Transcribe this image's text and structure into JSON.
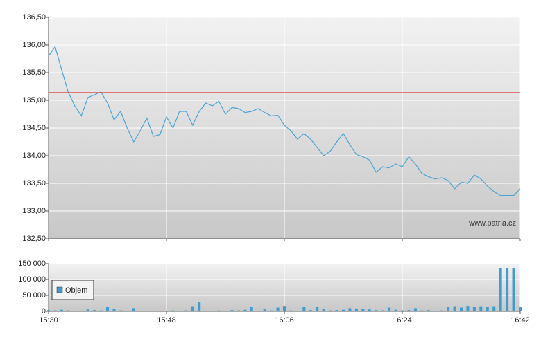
{
  "chart_data": [
    {
      "type": "line",
      "color": "#4aa3d4",
      "grid": true,
      "watermark": "www.patria.cz",
      "reference_line": 135.14,
      "reference_color": "#d9534f",
      "xlim": [
        "15:30",
        "16:42"
      ],
      "ylim": [
        132.5,
        136.5
      ],
      "yticks": [
        {
          "value": 132.5,
          "label": "132,50"
        },
        {
          "value": 133,
          "label": "133,00"
        },
        {
          "value": 133.5,
          "label": "133,50"
        },
        {
          "value": 134,
          "label": "134,00"
        },
        {
          "value": 134.5,
          "label": "134,50"
        },
        {
          "value": 135,
          "label": "135,00"
        },
        {
          "value": 135.5,
          "label": "135,50"
        },
        {
          "value": 136,
          "label": "136,00"
        },
        {
          "value": 136.5,
          "label": "136,50"
        }
      ],
      "x": [
        "15:30",
        "15:31",
        "15:32",
        "15:33",
        "15:34",
        "15:35",
        "15:36",
        "15:37",
        "15:38",
        "15:39",
        "15:40",
        "15:41",
        "15:42",
        "15:43",
        "15:44",
        "15:45",
        "15:46",
        "15:47",
        "15:48",
        "15:49",
        "15:50",
        "15:51",
        "15:52",
        "15:53",
        "15:54",
        "15:55",
        "15:56",
        "15:57",
        "15:58",
        "15:59",
        "16:00",
        "16:01",
        "16:02",
        "16:03",
        "16:04",
        "16:05",
        "16:06",
        "16:07",
        "16:08",
        "16:09",
        "16:10",
        "16:11",
        "16:12",
        "16:13",
        "16:14",
        "16:15",
        "16:16",
        "16:17",
        "16:18",
        "16:19",
        "16:20",
        "16:21",
        "16:22",
        "16:23",
        "16:24",
        "16:25",
        "16:26",
        "16:27",
        "16:28",
        "16:29",
        "16:30",
        "16:31",
        "16:32",
        "16:33",
        "16:34",
        "16:35",
        "16:36",
        "16:37",
        "16:38",
        "16:39",
        "16:40",
        "16:41",
        "16:42"
      ],
      "values": [
        135.8,
        135.97,
        135.55,
        135.15,
        134.9,
        134.72,
        135.05,
        135.1,
        135.15,
        134.95,
        134.65,
        134.8,
        134.5,
        134.25,
        134.45,
        134.68,
        134.35,
        134.38,
        134.7,
        134.5,
        134.8,
        134.8,
        134.55,
        134.8,
        134.95,
        134.9,
        134.98,
        134.75,
        134.87,
        134.85,
        134.78,
        134.8,
        134.85,
        134.78,
        134.72,
        134.73,
        134.55,
        134.45,
        134.3,
        134.4,
        134.3,
        134.15,
        134.0,
        134.08,
        134.25,
        134.4,
        134.2,
        134.02,
        133.98,
        133.92,
        133.7,
        133.8,
        133.78,
        133.85,
        133.8,
        133.98,
        133.85,
        133.68,
        133.62,
        133.58,
        133.6,
        133.55,
        133.4,
        133.52,
        133.5,
        133.65,
        133.58,
        133.45,
        133.35,
        133.28,
        133.28,
        133.28,
        133.4
      ]
    },
    {
      "type": "bar",
      "color": "#3e9ccf",
      "grid": true,
      "legend": "bottom-left",
      "series_name": "Objem",
      "xlim": [
        "15:30",
        "16:42"
      ],
      "xticks": [
        "15:30",
        "15:48",
        "16:06",
        "16:24",
        "16:42"
      ],
      "ylim": [
        0,
        150000
      ],
      "yticks": [
        0,
        {
          "value": 50000,
          "label": "50 000"
        },
        {
          "value": 100000,
          "label": "100 000"
        },
        {
          "value": 150000,
          "label": "150 000"
        }
      ],
      "x": [
        "15:30",
        "15:31",
        "15:32",
        "15:33",
        "15:34",
        "15:35",
        "15:36",
        "15:37",
        "15:38",
        "15:39",
        "15:40",
        "15:41",
        "15:42",
        "15:43",
        "15:44",
        "15:45",
        "15:46",
        "15:47",
        "15:48",
        "15:49",
        "15:50",
        "15:51",
        "15:52",
        "15:53",
        "15:54",
        "15:55",
        "15:56",
        "15:57",
        "15:58",
        "15:59",
        "16:00",
        "16:01",
        "16:02",
        "16:03",
        "16:04",
        "16:05",
        "16:06",
        "16:07",
        "16:08",
        "16:09",
        "16:10",
        "16:11",
        "16:12",
        "16:13",
        "16:14",
        "16:15",
        "16:16",
        "16:17",
        "16:18",
        "16:19",
        "16:20",
        "16:21",
        "16:22",
        "16:23",
        "16:24",
        "16:25",
        "16:26",
        "16:27",
        "16:28",
        "16:29",
        "16:30",
        "16:31",
        "16:32",
        "16:33",
        "16:34",
        "16:35",
        "16:36",
        "16:37",
        "16:38",
        "16:39",
        "16:40",
        "16:41",
        "16:42"
      ],
      "values": [
        4000,
        3000,
        5000,
        3000,
        2000,
        1000,
        6000,
        4000,
        3000,
        13000,
        8000,
        3000,
        2000,
        10000,
        2000,
        1000,
        2000,
        1000,
        2000,
        3000,
        2000,
        3000,
        14000,
        30000,
        2000,
        1000,
        3000,
        2000,
        4000,
        3000,
        5000,
        13000,
        2000,
        8000,
        3000,
        12000,
        15000,
        3000,
        2000,
        13000,
        4000,
        13000,
        8000,
        3000,
        4000,
        5000,
        10000,
        9000,
        8000,
        6000,
        4000,
        3000,
        12000,
        5000,
        3000,
        4000,
        10000,
        3000,
        4000,
        2000,
        3000,
        13000,
        14000,
        12000,
        15000,
        13000,
        14000,
        13000,
        14000,
        135000,
        135000,
        135000,
        13000
      ]
    }
  ]
}
